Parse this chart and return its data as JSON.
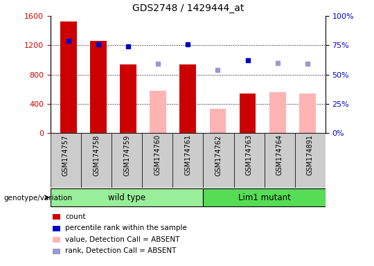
{
  "title": "GDS2748 / 1429444_at",
  "samples": [
    "GSM174757",
    "GSM174758",
    "GSM174759",
    "GSM174760",
    "GSM174761",
    "GSM174762",
    "GSM174763",
    "GSM174764",
    "GSM174891"
  ],
  "count_values": [
    1520,
    1260,
    940,
    0,
    940,
    0,
    540,
    0,
    0
  ],
  "absent_value": [
    0,
    0,
    0,
    580,
    0,
    330,
    0,
    560,
    540
  ],
  "percentile_present": [
    79,
    76,
    74,
    null,
    76,
    null,
    62,
    null,
    null
  ],
  "percentile_absent": [
    null,
    null,
    null,
    59,
    null,
    54,
    null,
    60,
    59
  ],
  "wt_count": 5,
  "mut_count": 4,
  "bar_width": 0.55,
  "left_ylim": [
    0,
    1600
  ],
  "right_ylim": [
    0,
    100
  ],
  "left_yticks": [
    0,
    400,
    800,
    1200,
    1600
  ],
  "right_yticks": [
    0,
    25,
    50,
    75,
    100
  ],
  "right_yticklabels": [
    "0%",
    "25%",
    "50%",
    "75%",
    "100%"
  ],
  "color_red": "#cc0000",
  "color_pink": "#ffb3b3",
  "color_blue": "#0000cc",
  "color_lightblue": "#9999cc",
  "color_wt_bg": "#99ee99",
  "color_mut_bg": "#55dd55",
  "color_xticklabel_bg": "#cccccc",
  "legend_items": [
    {
      "label": "count",
      "color": "#cc0000"
    },
    {
      "label": "percentile rank within the sample",
      "color": "#0000cc"
    },
    {
      "label": "value, Detection Call = ABSENT",
      "color": "#ffb3b3"
    },
    {
      "label": "rank, Detection Call = ABSENT",
      "color": "#9999cc"
    }
  ]
}
